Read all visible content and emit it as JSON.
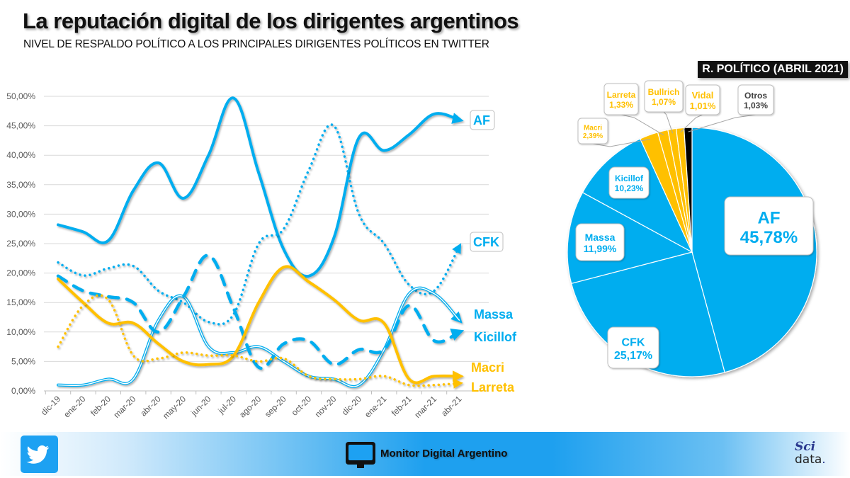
{
  "header": {
    "title": "La reputación digital de los dirigentes argentinos",
    "subtitle": "NIVEL DE RESPALDO POLÍTICO A LOS PRINCIPALES DIRIGENTES POLÍTICOS EN TWITTER"
  },
  "colors": {
    "blue": "#00adef",
    "yellow": "#ffc000",
    "black": "#000000",
    "grid": "#d9d9d9",
    "axis_text": "#595959"
  },
  "chart_data": [
    {
      "type": "line",
      "title": "Nivel de respaldo político a los principales dirigentes políticos en Twitter",
      "xlabel": "",
      "ylabel": "",
      "ylim": [
        0,
        50
      ],
      "yticks": [
        "0,00%",
        "5,00%",
        "10,00%",
        "15,00%",
        "20,00%",
        "25,00%",
        "30,00%",
        "35,00%",
        "40,00%",
        "45,00%",
        "50,00%"
      ],
      "grid": true,
      "x": [
        "dic-19",
        "ene-20",
        "feb-20",
        "mar-20",
        "abr-20",
        "may-20",
        "jun-20",
        "jul-20",
        "ago-20",
        "sep-20",
        "oct-20",
        "nov-20",
        "dic-20",
        "ene-21",
        "feb-21",
        "mar-21",
        "abr-21"
      ],
      "series": [
        {
          "name": "AF",
          "style": "solid",
          "color": "#00adef",
          "values": [
            28.2,
            27.0,
            25.5,
            34.0,
            38.7,
            32.7,
            40.0,
            49.7,
            37.0,
            24.0,
            19.5,
            26.0,
            43.0,
            40.8,
            43.5,
            47.0,
            46.0
          ]
        },
        {
          "name": "CFK",
          "style": "dotted",
          "color": "#00adef",
          "values": [
            21.8,
            19.6,
            20.8,
            21.2,
            17.0,
            15.0,
            11.7,
            13.0,
            25.0,
            27.5,
            37.5,
            45.0,
            30.0,
            25.0,
            18.0,
            17.0,
            24.5
          ]
        },
        {
          "name": "Massa",
          "style": "double",
          "color": "#00adef",
          "values": [
            1.0,
            1.0,
            2.0,
            2.0,
            12.0,
            16.0,
            7.5,
            6.5,
            7.5,
            5.0,
            2.5,
            2.0,
            1.0,
            7.0,
            16.5,
            16.5,
            12.0
          ]
        },
        {
          "name": "Kicillof",
          "style": "dashed",
          "color": "#00adef",
          "values": [
            19.5,
            17.0,
            16.0,
            15.0,
            10.0,
            16.0,
            23.0,
            14.0,
            4.0,
            8.0,
            8.5,
            4.5,
            7.0,
            7.0,
            14.5,
            8.5,
            10.0
          ]
        },
        {
          "name": "Macri",
          "style": "solid",
          "color": "#ffc000",
          "values": [
            19.0,
            15.0,
            11.5,
            11.5,
            8.0,
            5.0,
            4.5,
            6.0,
            15.0,
            21.0,
            18.5,
            15.5,
            12.0,
            11.5,
            2.0,
            2.5,
            2.5
          ]
        },
        {
          "name": "Larreta",
          "style": "dotted",
          "color": "#ffc000",
          "values": [
            7.5,
            14.5,
            15.5,
            6.0,
            5.5,
            6.5,
            6.0,
            6.0,
            5.0,
            5.5,
            2.5,
            2.0,
            2.0,
            2.5,
            1.0,
            1.0,
            1.3
          ]
        }
      ],
      "end_labels": [
        "AF",
        "CFK",
        "Massa",
        "Kicillof",
        "Macri",
        "Larreta"
      ],
      "legend": "end-of-line labels (right)"
    },
    {
      "type": "pie",
      "title": "R. POLÍTICO (ABRIL 2021)",
      "slices": [
        {
          "name": "AF",
          "value": 45.78,
          "label": "45,78%",
          "color": "#00adef"
        },
        {
          "name": "CFK",
          "value": 25.17,
          "label": "25,17%",
          "color": "#00adef"
        },
        {
          "name": "Massa",
          "value": 11.99,
          "label": "11,99%",
          "color": "#00adef"
        },
        {
          "name": "Kicillof",
          "value": 10.23,
          "label": "10,23%",
          "color": "#00adef"
        },
        {
          "name": "Macri",
          "value": 2.39,
          "label": "2,39%",
          "color": "#ffc000"
        },
        {
          "name": "Larreta",
          "value": 1.33,
          "label": "1,33%",
          "color": "#ffc000"
        },
        {
          "name": "Bullrich",
          "value": 1.07,
          "label": "1,07%",
          "color": "#ffc000"
        },
        {
          "name": "Vidal",
          "value": 1.01,
          "label": "1,01%",
          "color": "#ffc000"
        },
        {
          "name": "Otros",
          "value": 1.03,
          "label": "1,03%",
          "color": "#000000"
        }
      ]
    }
  ],
  "footer": {
    "brand": "Monitor Digital Argentino",
    "sci": "Sci",
    "data": "data",
    "dot": ".",
    "twitter_icon": "twitter-bird-icon",
    "monitor_icon": "monitor-icon"
  }
}
